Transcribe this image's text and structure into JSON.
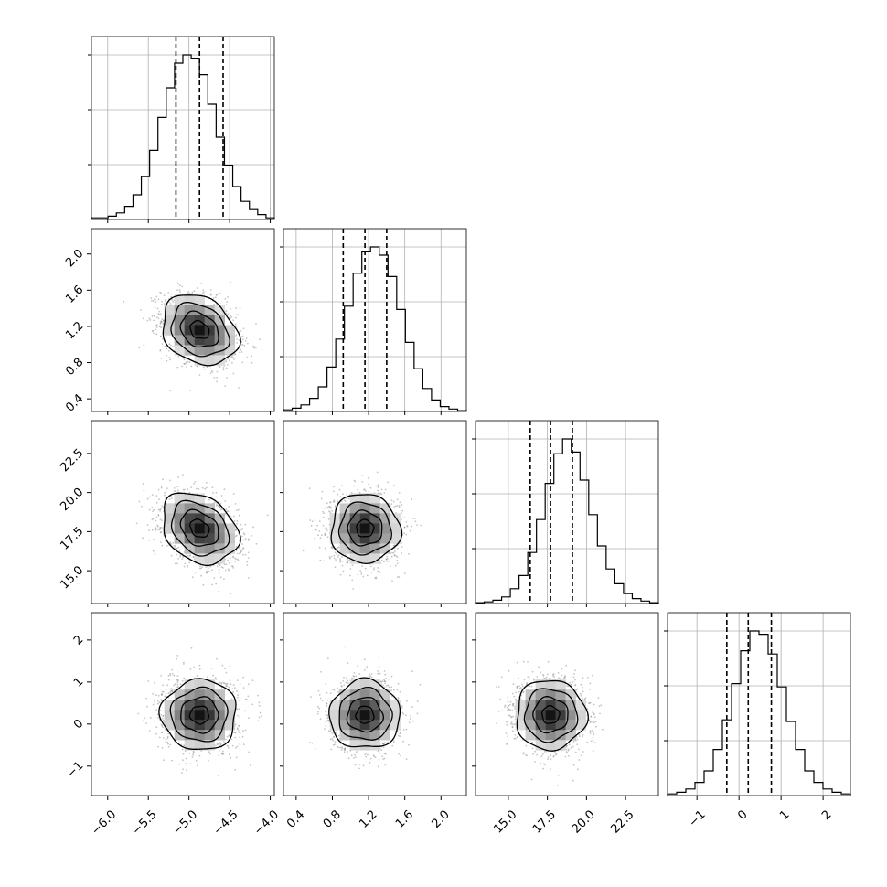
{
  "colors": {
    "ink": "#000000",
    "grid": "#b0b0b0",
    "scatter": "#8c8c8c",
    "background": "#ffffff"
  },
  "chart_data": {
    "type": "corner",
    "grid": true,
    "parameters": [
      {
        "range": [
          -6.2,
          -3.95
        ],
        "ticks": [
          -6.0,
          -5.5,
          -5.0,
          -4.5,
          -4.0
        ],
        "tick_labels": [
          "−6.0",
          "−5.5",
          "−5.0",
          "−4.5",
          "−4.0"
        ],
        "median": -4.87,
        "quantiles": [
          -5.16,
          -4.87,
          -4.58
        ],
        "hist_peak": 0.1,
        "hist_widths": [
          1,
          1
        ]
      },
      {
        "range": [
          0.26,
          2.28
        ],
        "ticks": [
          0.4,
          0.8,
          1.2,
          1.6,
          2.0
        ],
        "tick_labels": [
          "0.4",
          "0.8",
          "1.2",
          "1.6",
          "2.0"
        ],
        "median": 1.16,
        "quantiles": [
          0.92,
          1.16,
          1.4
        ],
        "hist_peak": 0.1
      },
      {
        "range": [
          12.9,
          24.6
        ],
        "ticks": [
          15.0,
          17.5,
          20.0,
          22.5
        ],
        "tick_labels": [
          "15.0",
          "17.5",
          "20.0",
          "22.5"
        ],
        "median": 17.7,
        "quantiles": [
          16.4,
          17.7,
          19.1
        ],
        "hist_peak": 0.1
      },
      {
        "range": [
          -1.7,
          2.65
        ],
        "ticks": [
          -1,
          0,
          1,
          2
        ],
        "tick_labels": [
          "−1",
          "0",
          "1",
          "2"
        ],
        "median": 0.22,
        "quantiles": [
          -0.29,
          0.22,
          0.77
        ],
        "hist_peak": 0.1
      }
    ],
    "histograms": [
      {
        "param": 0,
        "bins": [
          -6.2,
          -3.95
        ],
        "counts": [
          1,
          1,
          2,
          4,
          8,
          15,
          26,
          42,
          62,
          80,
          95,
          100,
          98,
          88,
          70,
          50,
          33,
          20,
          11,
          6,
          3,
          1
        ]
      },
      {
        "param": 1,
        "bins": [
          0.26,
          2.28
        ],
        "counts": [
          1,
          2,
          4,
          8,
          15,
          27,
          44,
          64,
          84,
          97,
          100,
          95,
          82,
          62,
          42,
          26,
          14,
          7,
          3,
          1.5,
          0.5
        ]
      },
      {
        "param": 2,
        "bins": [
          12.9,
          24.6
        ],
        "counts": [
          0.5,
          1,
          2,
          4,
          9,
          17,
          31,
          51,
          73,
          91,
          100,
          92,
          75,
          54,
          35,
          21,
          12,
          6,
          3,
          1.5,
          0.5
        ]
      },
      {
        "param": 3,
        "bins": [
          -1.7,
          2.65
        ],
        "counts": [
          1,
          2,
          4,
          8,
          15,
          28,
          46,
          68,
          88,
          100,
          98,
          86,
          66,
          45,
          28,
          15,
          8,
          4,
          2,
          1
        ]
      }
    ],
    "pairs": [
      {
        "x": 0,
        "y": 1,
        "center": [
          -4.87,
          1.16
        ],
        "sigma": [
          0.22,
          0.18
        ],
        "rho": -0.3
      },
      {
        "x": 0,
        "y": 2,
        "center": [
          -4.87,
          17.7
        ],
        "sigma": [
          0.22,
          1.05
        ],
        "rho": -0.35
      },
      {
        "x": 1,
        "y": 2,
        "center": [
          1.16,
          17.7
        ],
        "sigma": [
          0.18,
          1.05
        ],
        "rho": -0.05
      },
      {
        "x": 0,
        "y": 3,
        "center": [
          -4.87,
          0.22
        ],
        "sigma": [
          0.22,
          0.4
        ],
        "rho": 0.0
      },
      {
        "x": 1,
        "y": 3,
        "center": [
          1.16,
          0.22
        ],
        "sigma": [
          0.18,
          0.4
        ],
        "rho": 0.0
      },
      {
        "x": 2,
        "y": 3,
        "center": [
          17.7,
          0.22
        ],
        "sigma": [
          1.05,
          0.4
        ],
        "rho": -0.05
      }
    ],
    "contour_levels_sigma": [
      0.5,
      1.0,
      1.5,
      2.0
    ]
  }
}
